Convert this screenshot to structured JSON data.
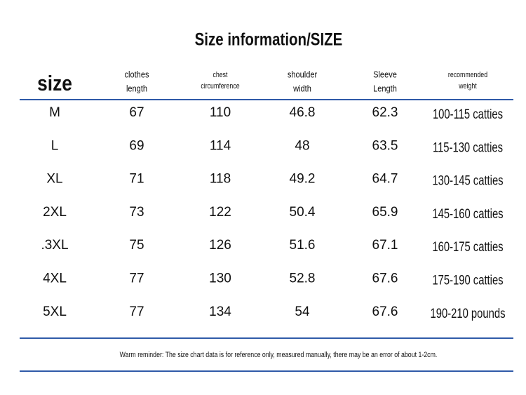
{
  "title": "Size information/SIZE",
  "table": {
    "headers": [
      [
        "size"
      ],
      [
        "clothes",
        "length"
      ],
      [
        "chest",
        "circumference"
      ],
      [
        "shoulder",
        "width"
      ],
      [
        "Sleeve",
        "Length"
      ],
      [
        "recommended",
        "weight"
      ]
    ],
    "rows": [
      [
        "M",
        "67",
        "110",
        "46.8",
        "62.3",
        "100-115 catties"
      ],
      [
        "L",
        "69",
        "114",
        "48",
        "63.5",
        "115-130 catties"
      ],
      [
        "XL",
        "71",
        "118",
        "49.2",
        "64.7",
        "130-145 catties"
      ],
      [
        "2XL",
        "73",
        "122",
        "50.4",
        "65.9",
        "145-160 catties"
      ],
      [
        ".3XL",
        "75",
        "126",
        "51.6",
        "67.1",
        "160-175 catties"
      ],
      [
        "4XL",
        "77",
        "130",
        "52.8",
        "67.6",
        "175-190 catties"
      ],
      [
        "5XL",
        "77",
        "134",
        "54",
        "67.6",
        "190-210 pounds"
      ]
    ]
  },
  "note": "Warm reminder: The size chart data is for reference only, measured manually, there may be an error of about 1-2cm."
}
